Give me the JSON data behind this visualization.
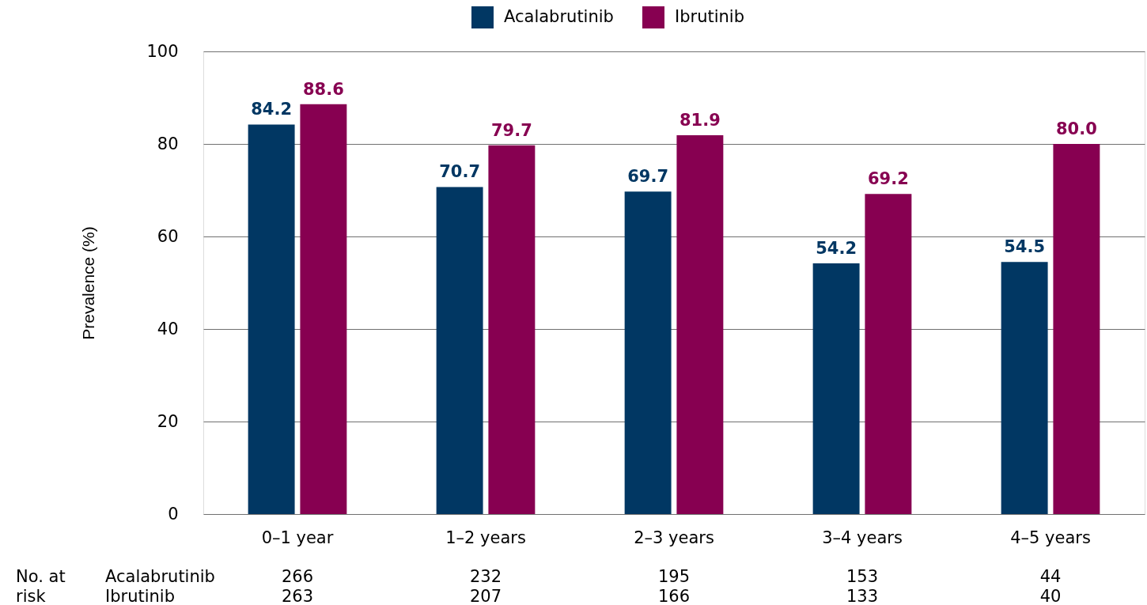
{
  "chart_data": {
    "type": "bar",
    "ylabel": "Prevalence (%)",
    "categories": [
      "0–1 year",
      "1–2 years",
      "2–3 years",
      "3–4 years",
      "4–5 years"
    ],
    "series": [
      {
        "name": "Acalabrutinib",
        "color": "#013763",
        "values": [
          84.2,
          70.7,
          69.7,
          54.2,
          54.5
        ],
        "value_labels": [
          "84.2",
          "70.7",
          "69.7",
          "54.2",
          "54.5"
        ]
      },
      {
        "name": "Ibrutinib",
        "color": "#870051",
        "values": [
          88.6,
          79.7,
          81.9,
          69.2,
          80.0
        ],
        "value_labels": [
          "88.6",
          "79.7",
          "81.9",
          "69.2",
          "80.0"
        ]
      }
    ],
    "ylim": [
      0,
      100
    ],
    "yticks": [
      0,
      20,
      40,
      60,
      80,
      100
    ],
    "grid": "y",
    "legend": "top",
    "annotations": [
      "No. at risk",
      "Acalabrutinib",
      "266",
      "232",
      "195",
      "153",
      "44",
      "Ibrutinib",
      "263",
      "207",
      "166",
      "133",
      "40"
    ]
  }
}
